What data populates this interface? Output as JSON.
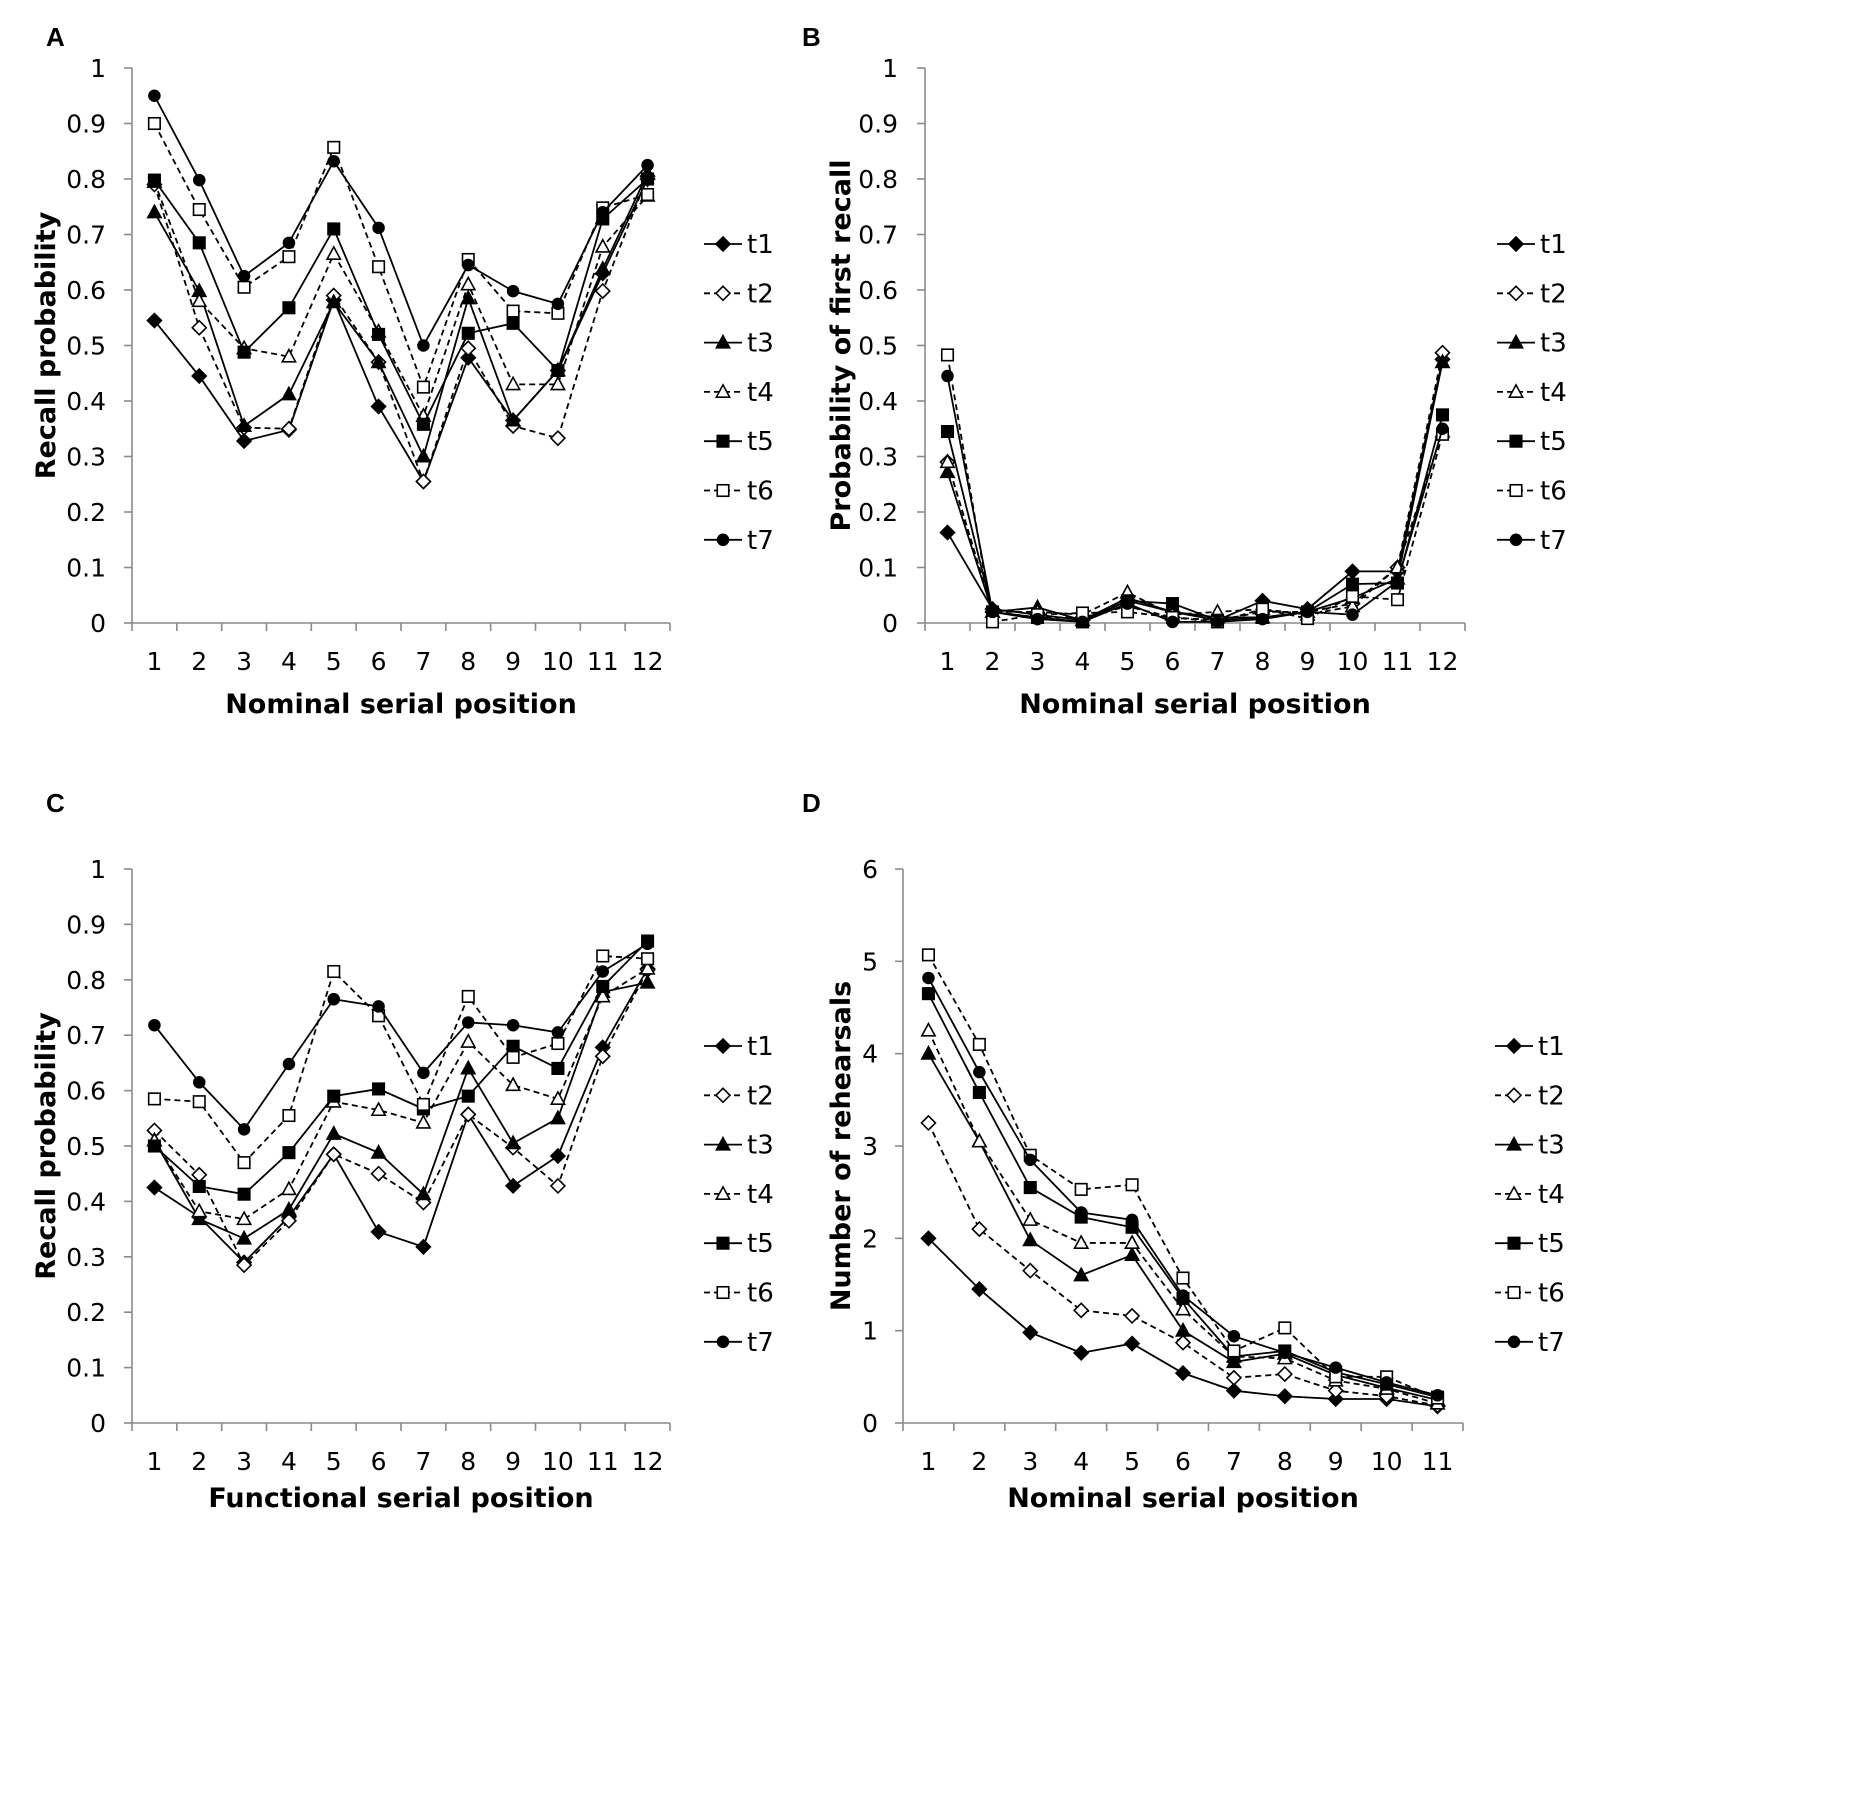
{
  "series_style": {
    "t1": {
      "marker": "diamond",
      "fill": "#000000",
      "dash": false
    },
    "t2": {
      "marker": "diamond",
      "fill": "#ffffff",
      "dash": true
    },
    "t3": {
      "marker": "triangle",
      "fill": "#000000",
      "dash": false
    },
    "t4": {
      "marker": "triangle",
      "fill": "#ffffff",
      "dash": true
    },
    "t5": {
      "marker": "square",
      "fill": "#000000",
      "dash": false
    },
    "t6": {
      "marker": "square",
      "fill": "#ffffff",
      "dash": true
    },
    "t7": {
      "marker": "circle",
      "fill": "#000000",
      "dash": false
    }
  },
  "chart_data": [
    {
      "panel": "A",
      "type": "line",
      "xlabel": "Nominal serial position",
      "ylabel": "Recall probability",
      "ylim": [
        0,
        1
      ],
      "yticks": [
        "0",
        "0.1",
        "0.2",
        "0.3",
        "0.4",
        "0.5",
        "0.6",
        "0.7",
        "0.8",
        "0.9",
        "1"
      ],
      "categories": [
        "1",
        "2",
        "3",
        "4",
        "5",
        "6",
        "7",
        "8",
        "9",
        "10",
        "11",
        "12"
      ],
      "series": [
        {
          "name": "t1",
          "values": [
            0.545,
            0.445,
            0.328,
            0.348,
            0.582,
            0.39,
            0.255,
            0.478,
            0.365,
            0.455,
            0.63,
            0.8
          ]
        },
        {
          "name": "t2",
          "values": [
            0.79,
            0.532,
            0.352,
            0.35,
            0.59,
            0.47,
            0.255,
            0.495,
            0.355,
            0.333,
            0.598,
            0.805
          ]
        },
        {
          "name": "t3",
          "values": [
            0.74,
            0.598,
            0.355,
            0.412,
            0.578,
            0.47,
            0.3,
            0.585,
            0.365,
            0.455,
            0.638,
            0.81
          ]
        },
        {
          "name": "t4",
          "values": [
            0.795,
            0.58,
            0.495,
            0.48,
            0.665,
            0.525,
            0.373,
            0.61,
            0.43,
            0.43,
            0.678,
            0.77
          ]
        },
        {
          "name": "t5",
          "values": [
            0.798,
            0.685,
            0.488,
            0.568,
            0.71,
            0.52,
            0.358,
            0.522,
            0.54,
            0.455,
            0.728,
            0.8
          ]
        },
        {
          "name": "t6",
          "values": [
            0.9,
            0.745,
            0.605,
            0.66,
            0.857,
            0.642,
            0.425,
            0.655,
            0.562,
            0.558,
            0.748,
            0.772
          ]
        },
        {
          "name": "t7",
          "values": [
            0.95,
            0.798,
            0.625,
            0.685,
            0.832,
            0.712,
            0.5,
            0.645,
            0.598,
            0.575,
            0.74,
            0.825
          ]
        }
      ]
    },
    {
      "panel": "B",
      "type": "line",
      "xlabel": "Nominal serial position",
      "ylabel": "Probability of first recall",
      "ylim": [
        0,
        1
      ],
      "yticks": [
        "0",
        "0.1",
        "0.2",
        "0.3",
        "0.4",
        "0.5",
        "0.6",
        "0.7",
        "0.8",
        "0.9",
        "1"
      ],
      "categories": [
        "1",
        "2",
        "3",
        "4",
        "5",
        "6",
        "7",
        "8",
        "9",
        "10",
        "11",
        "12"
      ],
      "series": [
        {
          "name": "t1",
          "values": [
            0.163,
            0.025,
            0.015,
            0.005,
            0.04,
            0.02,
            0.005,
            0.04,
            0.025,
            0.093,
            0.093,
            0.475
          ]
        },
        {
          "name": "t2",
          "values": [
            0.29,
            0.02,
            0.01,
            0.01,
            0.03,
            0.01,
            0.005,
            0.02,
            0.02,
            0.035,
            0.1,
            0.487
          ]
        },
        {
          "name": "t3",
          "values": [
            0.272,
            0.02,
            0.028,
            0.005,
            0.045,
            0.02,
            0.01,
            0.01,
            0.02,
            0.045,
            0.08,
            0.47
          ]
        },
        {
          "name": "t4",
          "values": [
            0.29,
            0.02,
            0.02,
            0.015,
            0.055,
            0.015,
            0.02,
            0.025,
            0.015,
            0.03,
            0.1,
            0.345
          ]
        },
        {
          "name": "t5",
          "values": [
            0.345,
            0.02,
            0.01,
            0.002,
            0.04,
            0.035,
            0.005,
            0.01,
            0.02,
            0.07,
            0.072,
            0.375
          ]
        },
        {
          "name": "t6",
          "values": [
            0.483,
            0.002,
            0.015,
            0.018,
            0.02,
            0.01,
            0.002,
            0.025,
            0.008,
            0.048,
            0.042,
            0.34
          ]
        },
        {
          "name": "t7",
          "values": [
            0.445,
            0.02,
            0.007,
            0.002,
            0.035,
            0.002,
            0.002,
            0.007,
            0.02,
            0.015,
            0.075,
            0.35
          ]
        }
      ]
    },
    {
      "panel": "C",
      "type": "line",
      "xlabel": "Functional serial position",
      "ylabel": "Recall probability",
      "ylim": [
        0,
        1
      ],
      "yticks": [
        "0",
        "0.1",
        "0.2",
        "0.3",
        "0.4",
        "0.5",
        "0.6",
        "0.7",
        "0.8",
        "0.9",
        "1"
      ],
      "categories": [
        "1",
        "2",
        "3",
        "4",
        "5",
        "6",
        "7",
        "8",
        "9",
        "10",
        "11",
        "12"
      ],
      "series": [
        {
          "name": "t1",
          "values": [
            0.425,
            0.372,
            0.29,
            0.372,
            0.485,
            0.345,
            0.318,
            0.557,
            0.428,
            0.482,
            0.678,
            0.82
          ]
        },
        {
          "name": "t2",
          "values": [
            0.528,
            0.448,
            0.285,
            0.365,
            0.485,
            0.45,
            0.398,
            0.557,
            0.497,
            0.428,
            0.662,
            0.818
          ]
        },
        {
          "name": "t3",
          "values": [
            0.51,
            0.368,
            0.333,
            0.385,
            0.522,
            0.488,
            0.413,
            0.64,
            0.505,
            0.55,
            0.778,
            0.795
          ]
        },
        {
          "name": "t4",
          "values": [
            0.51,
            0.382,
            0.368,
            0.422,
            0.58,
            0.565,
            0.542,
            0.688,
            0.61,
            0.585,
            0.77,
            0.82
          ]
        },
        {
          "name": "t5",
          "values": [
            0.5,
            0.427,
            0.413,
            0.488,
            0.59,
            0.603,
            0.567,
            0.59,
            0.68,
            0.64,
            0.788,
            0.87
          ]
        },
        {
          "name": "t6",
          "values": [
            0.585,
            0.58,
            0.47,
            0.555,
            0.815,
            0.735,
            0.575,
            0.77,
            0.66,
            0.685,
            0.843,
            0.838
          ]
        },
        {
          "name": "t7",
          "values": [
            0.718,
            0.615,
            0.53,
            0.648,
            0.765,
            0.752,
            0.632,
            0.723,
            0.718,
            0.705,
            0.815,
            0.865
          ]
        }
      ]
    },
    {
      "panel": "D",
      "type": "line",
      "xlabel": "Nominal serial position",
      "ylabel": "Number of rehearsals",
      "ylim": [
        0,
        6
      ],
      "yticks": [
        "0",
        "1",
        "2",
        "3",
        "4",
        "5",
        "6"
      ],
      "categories": [
        "1",
        "2",
        "3",
        "4",
        "5",
        "6",
        "7",
        "8",
        "9",
        "10",
        "11"
      ],
      "series": [
        {
          "name": "t1",
          "values": [
            2.0,
            1.45,
            0.98,
            0.76,
            0.86,
            0.54,
            0.35,
            0.29,
            0.26,
            0.26,
            0.18
          ]
        },
        {
          "name": "t2",
          "values": [
            3.25,
            2.1,
            1.65,
            1.22,
            1.16,
            0.87,
            0.49,
            0.53,
            0.35,
            0.29,
            0.19
          ]
        },
        {
          "name": "t3",
          "values": [
            4.0,
            3.05,
            1.98,
            1.6,
            1.82,
            1.0,
            0.66,
            0.75,
            0.52,
            0.38,
            0.25
          ]
        },
        {
          "name": "t4",
          "values": [
            4.25,
            3.05,
            2.2,
            1.95,
            1.95,
            1.23,
            0.72,
            0.7,
            0.46,
            0.37,
            0.21
          ]
        },
        {
          "name": "t5",
          "values": [
            4.65,
            3.58,
            2.55,
            2.23,
            2.12,
            1.35,
            0.72,
            0.78,
            0.55,
            0.42,
            0.28
          ]
        },
        {
          "name": "t6",
          "values": [
            5.07,
            4.1,
            2.9,
            2.53,
            2.58,
            1.57,
            0.78,
            1.03,
            0.5,
            0.5,
            0.27
          ]
        },
        {
          "name": "t7",
          "values": [
            4.82,
            3.8,
            2.85,
            2.28,
            2.2,
            1.38,
            0.94,
            0.76,
            0.6,
            0.44,
            0.3
          ]
        }
      ]
    }
  ]
}
